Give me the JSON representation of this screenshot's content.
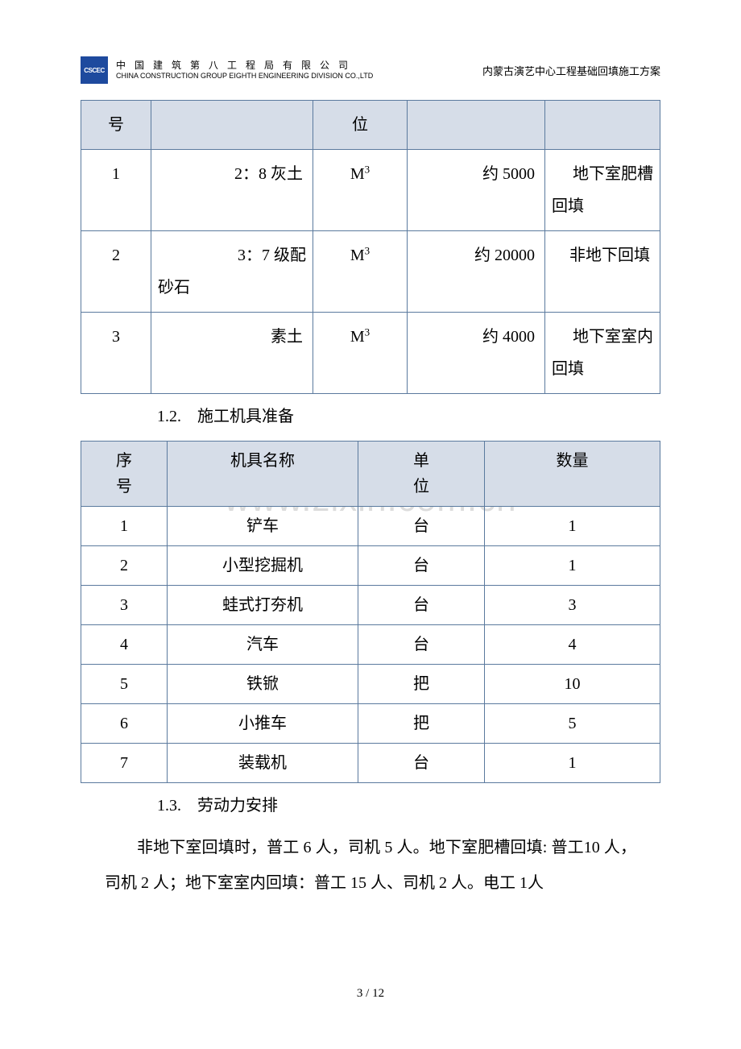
{
  "header": {
    "company_cn": "中 国 建 筑 第 八 工 程 局 有 限 公 司",
    "company_en": "CHINA CONSTRUCTION GROUP EIGHTH ENGINEERING DIVISION CO.,LTD",
    "doc_title": "内蒙古演艺中心工程基础回填施工方案",
    "logo_text": "CSCEC"
  },
  "table1": {
    "headers": {
      "seq": "号",
      "unit": "位"
    },
    "rows": [
      {
        "seq": "1",
        "material": "2：8 灰土",
        "unit": "M³",
        "qty": "约 5000",
        "note_r": "地下室肥槽",
        "note_l": "回填"
      },
      {
        "seq": "2",
        "material": "3：7 级配砂石",
        "unit": "M³",
        "qty": "约 20000",
        "note_r": "非地下回填",
        "note_l": ""
      },
      {
        "seq": "3",
        "material": "素土",
        "unit": "M³",
        "qty": "约 4000",
        "note_r": "地下室室内",
        "note_l": "回填"
      }
    ]
  },
  "section12": "1.2.　施工机具准备",
  "table2": {
    "headers": {
      "seq": "序号",
      "name": "机具名称",
      "unit": "单位",
      "qty": "数量"
    },
    "seq_split": {
      "top": "序",
      "bottom": "号"
    },
    "unit_split": {
      "top": "单",
      "bottom": "位"
    },
    "rows": [
      {
        "seq": "1",
        "name": "铲车",
        "unit": "台",
        "qty": "1"
      },
      {
        "seq": "2",
        "name": "小型挖掘机",
        "unit": "台",
        "qty": "1"
      },
      {
        "seq": "3",
        "name": "蛙式打夯机",
        "unit": "台",
        "qty": "3"
      },
      {
        "seq": "4",
        "name": "汽车",
        "unit": "台",
        "qty": "4"
      },
      {
        "seq": "5",
        "name": "铁锨",
        "unit": "把",
        "qty": "10"
      },
      {
        "seq": "6",
        "name": "小推车",
        "unit": "把",
        "qty": "5"
      },
      {
        "seq": "7",
        "name": "装载机",
        "unit": "台",
        "qty": "1"
      }
    ]
  },
  "section13": "1.3.　劳动力安排",
  "paragraph": "非地下室回填时，普工 6 人，司机 5 人。地下室肥槽回填: 普工10 人，司机 2 人；地下室室内回填：普工 15 人、司机 2 人。电工 1人",
  "watermark": "www.zixin.com.cn",
  "page_num": "3 / 12"
}
